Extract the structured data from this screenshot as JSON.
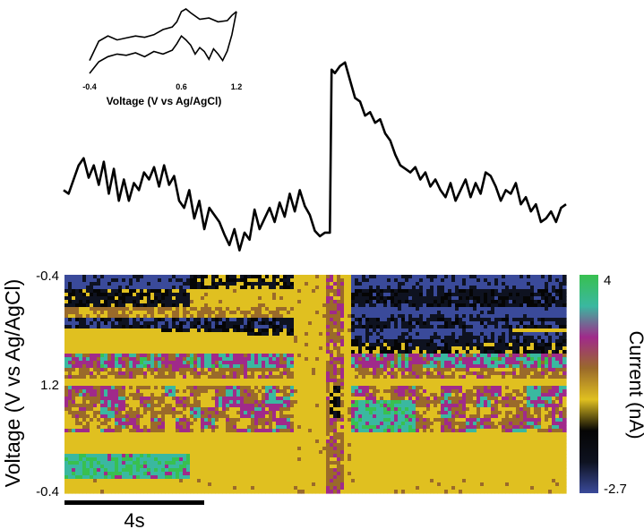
{
  "chart_data": [
    {
      "type": "line",
      "panel": "inset-cyclic-voltammogram",
      "xlabel": "Voltage (V vs Ag/AgCl)",
      "x_ticks": [
        "-0.4",
        "0.6",
        "1.2"
      ],
      "xlim": [
        -0.4,
        1.2
      ],
      "series": [
        {
          "branch": "forward",
          "x": [
            -0.4,
            -0.3,
            -0.2,
            -0.1,
            0.0,
            0.1,
            0.2,
            0.3,
            0.4,
            0.5,
            0.55,
            0.6,
            0.65,
            0.7,
            0.8,
            0.9,
            1.0,
            1.1,
            1.15,
            1.2
          ],
          "y": [
            0.2,
            0.5,
            0.58,
            0.52,
            0.55,
            0.58,
            0.56,
            0.6,
            0.68,
            0.72,
            0.8,
            0.96,
            1.0,
            0.94,
            0.84,
            0.86,
            0.8,
            0.82,
            0.9,
            0.96
          ]
        },
        {
          "branch": "reverse",
          "x": [
            1.2,
            1.15,
            1.1,
            1.05,
            1.0,
            0.95,
            0.9,
            0.85,
            0.8,
            0.75,
            0.7,
            0.65,
            0.6,
            0.55,
            0.5,
            0.4,
            0.3,
            0.2,
            0.1,
            0.0,
            -0.1,
            -0.2,
            -0.3,
            -0.4
          ],
          "y": [
            0.96,
            0.6,
            0.35,
            0.2,
            0.3,
            0.38,
            0.22,
            0.34,
            0.4,
            0.3,
            0.44,
            0.52,
            0.58,
            0.46,
            0.36,
            0.3,
            0.34,
            0.26,
            0.32,
            0.28,
            0.3,
            0.26,
            0.18,
            0.0
          ]
        }
      ]
    },
    {
      "type": "line",
      "panel": "current-vs-time-trace",
      "x_unit": "s",
      "xlim": [
        0,
        30
      ],
      "series": [
        {
          "x": [
            0.0,
            0.3,
            0.6,
            0.9,
            1.2,
            1.5,
            1.8,
            2.1,
            2.4,
            2.7,
            3.0,
            3.3,
            3.6,
            3.9,
            4.2,
            4.5,
            4.8,
            5.1,
            5.4,
            5.7,
            6.0,
            6.3,
            6.6,
            6.9,
            7.2,
            7.5,
            7.8,
            8.1,
            8.4,
            8.7,
            9.0,
            9.3,
            9.6,
            9.9,
            10.2,
            10.5,
            10.8,
            11.1,
            11.4,
            11.7,
            12.0,
            12.3,
            12.6,
            12.9,
            13.2,
            13.5,
            13.8,
            14.1,
            14.4,
            14.7,
            15.0,
            15.3,
            15.6,
            15.9,
            16.0,
            16.2,
            16.5,
            16.8,
            17.1,
            17.4,
            17.7,
            18.0,
            18.3,
            18.6,
            18.9,
            19.2,
            19.5,
            19.8,
            20.1,
            20.4,
            20.7,
            21.0,
            21.3,
            21.6,
            21.9,
            22.2,
            22.5,
            22.8,
            23.1,
            23.4,
            23.7,
            24.0,
            24.3,
            24.6,
            24.9,
            25.2,
            25.5,
            25.8,
            26.1,
            26.4,
            26.7,
            27.0,
            27.3,
            27.6,
            27.9,
            28.2,
            28.5,
            28.8,
            29.1,
            29.4,
            29.7,
            30.0
          ],
          "y": [
            0.2,
            0.18,
            0.26,
            0.34,
            0.38,
            0.27,
            0.34,
            0.23,
            0.36,
            0.18,
            0.32,
            0.14,
            0.26,
            0.14,
            0.24,
            0.2,
            0.3,
            0.26,
            0.33,
            0.22,
            0.34,
            0.23,
            0.28,
            0.14,
            0.1,
            0.2,
            0.04,
            0.14,
            -0.02,
            0.1,
            0.06,
            0.02,
            -0.05,
            -0.11,
            -0.02,
            -0.14,
            -0.04,
            -0.08,
            0.09,
            -0.02,
            0.04,
            0.1,
            0.02,
            0.13,
            0.05,
            0.18,
            0.08,
            0.2,
            0.11,
            0.06,
            -0.03,
            -0.06,
            -0.04,
            -0.04,
            0.88,
            0.86,
            0.9,
            0.92,
            0.82,
            0.72,
            0.7,
            0.62,
            0.64,
            0.58,
            0.6,
            0.52,
            0.48,
            0.4,
            0.34,
            0.32,
            0.3,
            0.33,
            0.26,
            0.3,
            0.22,
            0.26,
            0.2,
            0.16,
            0.24,
            0.14,
            0.2,
            0.26,
            0.16,
            0.24,
            0.18,
            0.3,
            0.28,
            0.22,
            0.14,
            0.2,
            0.18,
            0.24,
            0.12,
            0.16,
            0.08,
            0.12,
            0.02,
            0.04,
            0.08,
            0.02,
            0.1,
            0.12
          ]
        }
      ]
    },
    {
      "type": "heatmap",
      "panel": "false-color-voltammogram",
      "ylabel": "Voltage (V vs Ag/AgCl)",
      "y_ticks": [
        "-0.4",
        "1.2",
        "-0.4"
      ],
      "colorbar_label": "Current (nA)",
      "colorbar_ticks": [
        "4",
        "-2.7"
      ],
      "clim": [
        -2.7,
        4
      ],
      "colormap": [
        "#3a4a9a",
        "#0e1220",
        "#050505",
        "#e0c020",
        "#9a6a2a",
        "#a02a8a",
        "#3ab8a0",
        "#38c050"
      ],
      "scale_bar_label": "4s",
      "scale_bar_seconds": 4,
      "time_range_s": [
        0,
        30
      ]
    }
  ]
}
